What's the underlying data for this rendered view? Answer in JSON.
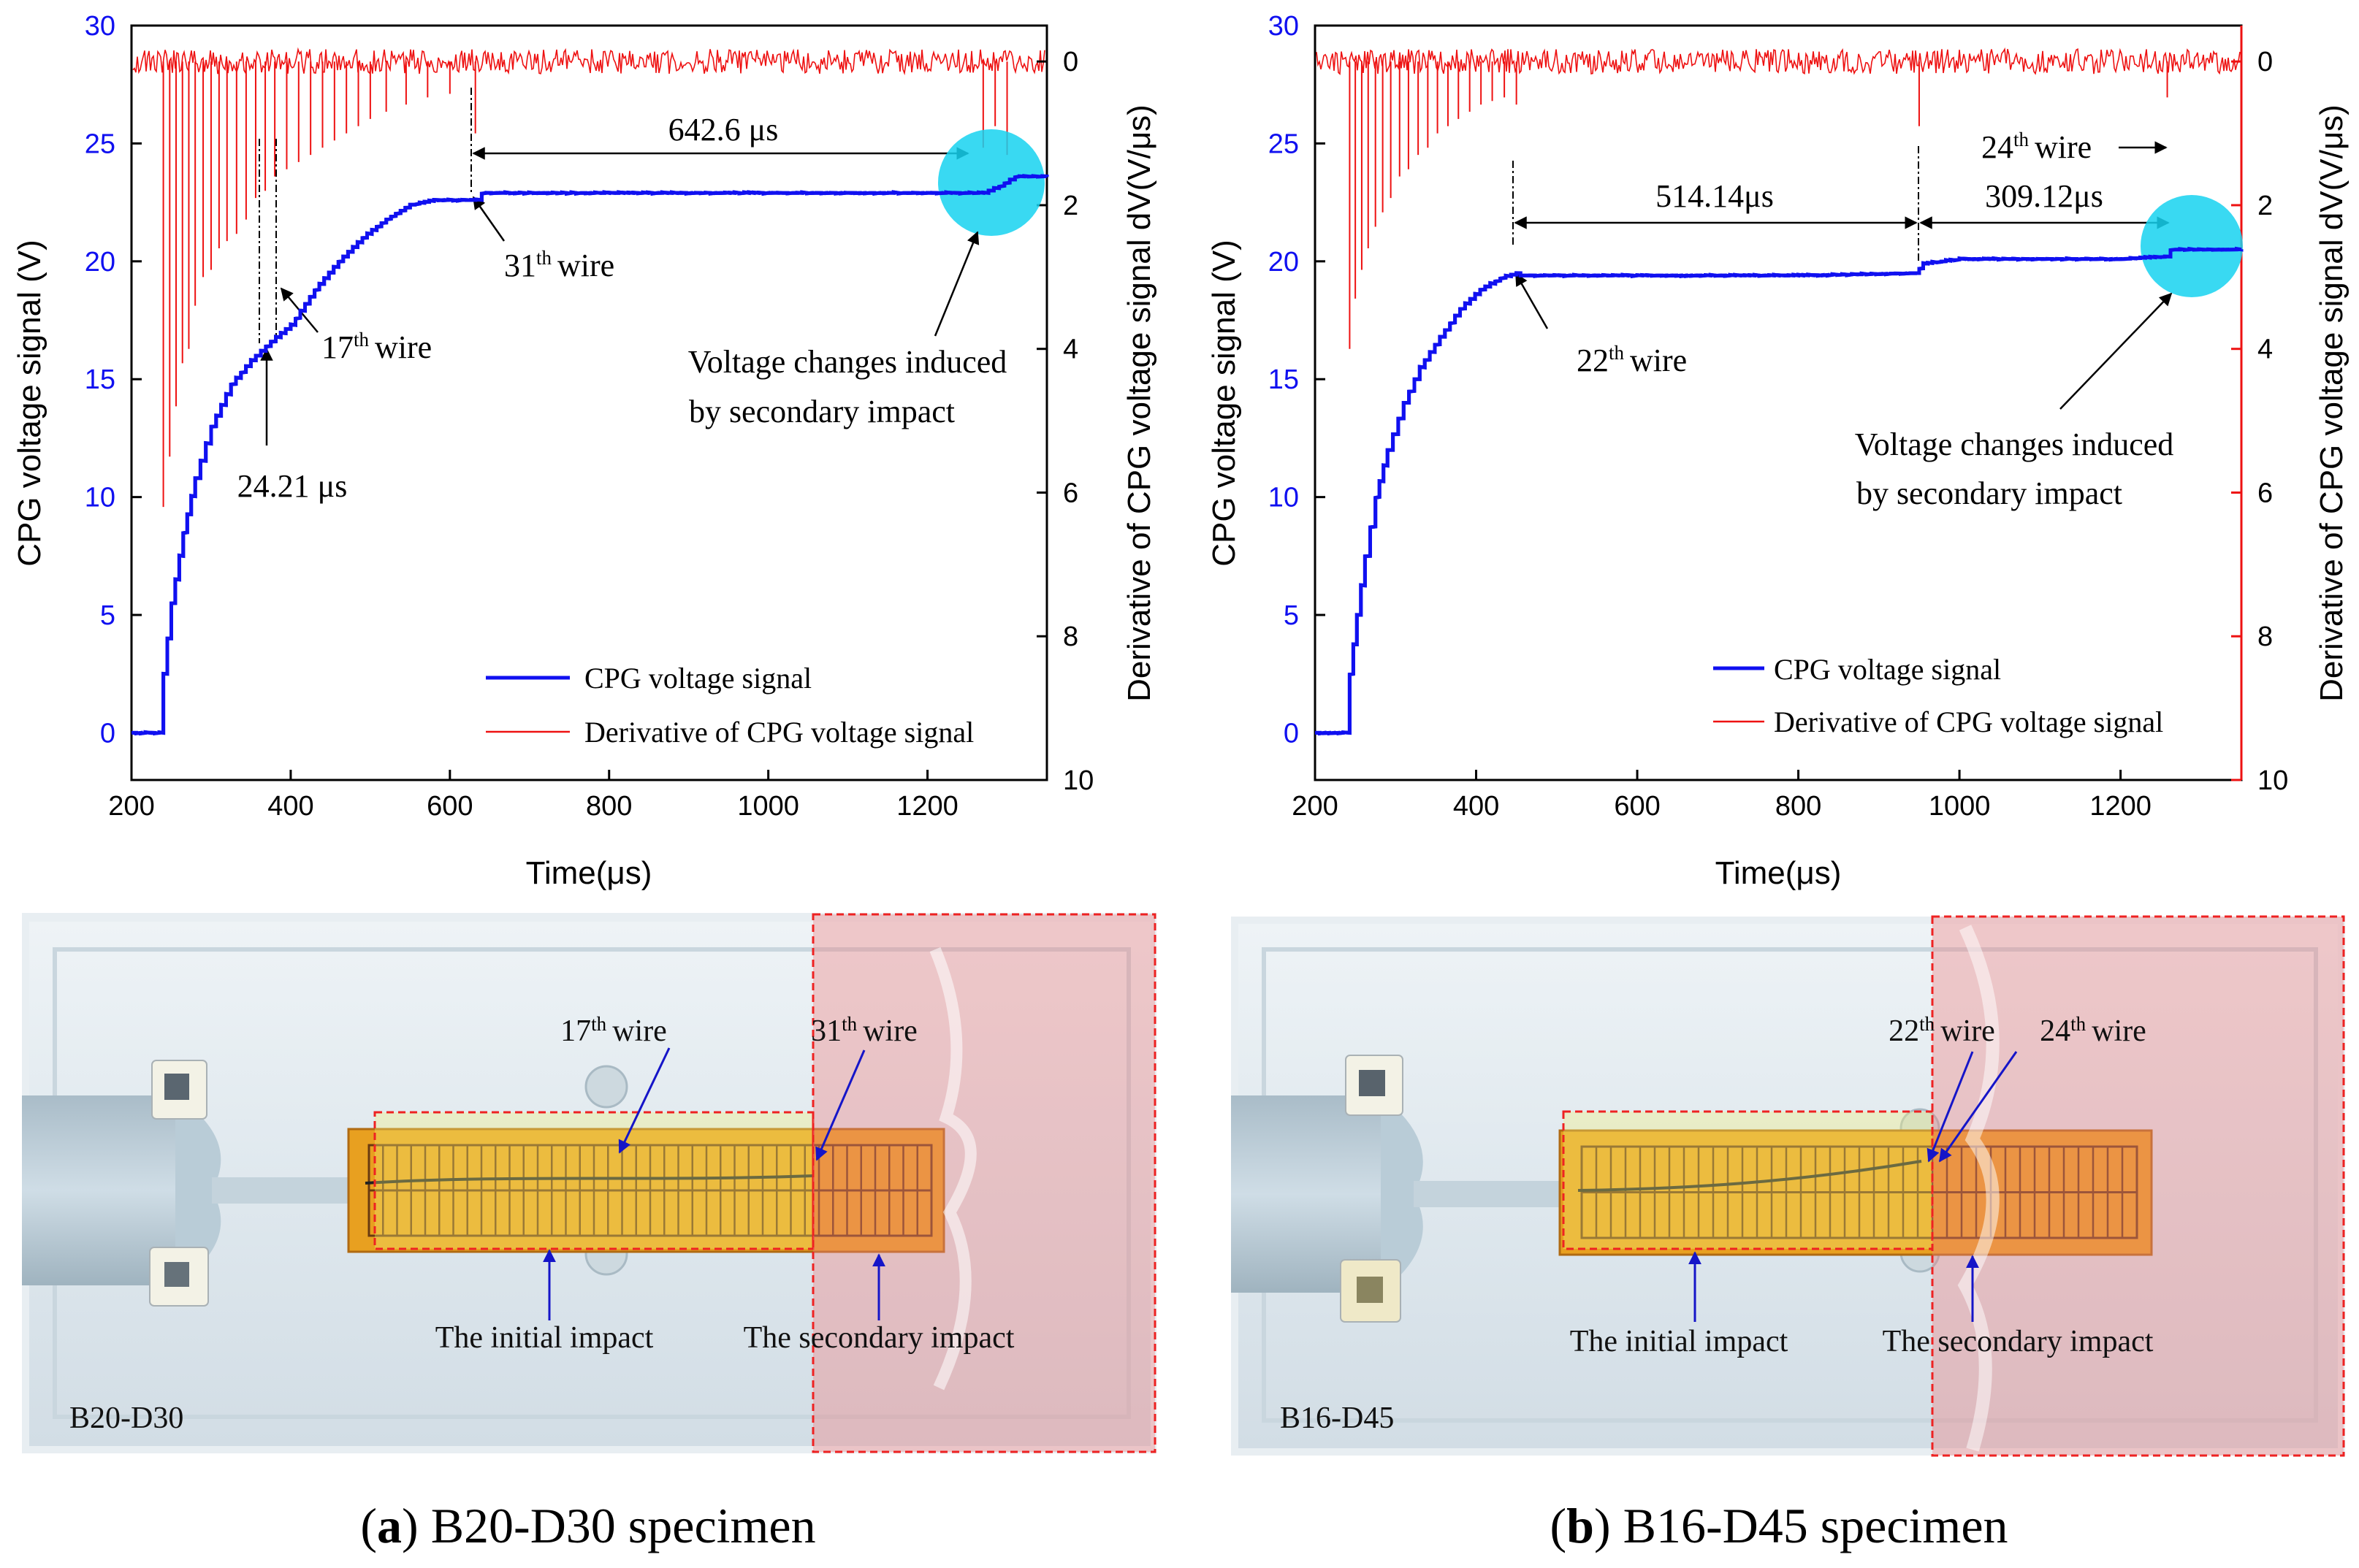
{
  "colors": {
    "voltage": "#1010f0",
    "derivative": "#ee1111",
    "circle": "#16d2f0",
    "photo_box": "#f08080",
    "tape": "#e8a020"
  },
  "chart_data": [
    {
      "type": "line",
      "panel": "a",
      "xlabel": "Time(μs)",
      "ylabel": "CPG voltage signal (V)",
      "y2label": "Derivative of CPG voltage signal dV(V/μs)",
      "xlim": [
        200,
        1350
      ],
      "ylim": [
        -2,
        30
      ],
      "y2lim": [
        -0.5,
        10
      ],
      "y2_inverted": true,
      "x_ticks": [
        "200",
        "400",
        "600",
        "800",
        "1000",
        "1200"
      ],
      "y_ticks": [
        "0",
        "5",
        "10",
        "15",
        "20",
        "25",
        "30"
      ],
      "y2_ticks": [
        "0",
        "2",
        "4",
        "6",
        "8",
        "10"
      ],
      "legend": [
        "CPG voltage signal",
        "Derivative of CPG voltage signal"
      ],
      "legend_position": "bottom-right",
      "series": [
        {
          "name": "CPG voltage signal",
          "x": [
            200,
            235,
            240,
            250,
            265,
            280,
            300,
            325,
            350,
            375,
            400,
            430,
            460,
            490,
            520,
            550,
            580,
            610,
            632,
            640,
            800,
            1000,
            1200,
            1270,
            1290,
            1310,
            1350
          ],
          "y": [
            0,
            0,
            2.5,
            5.5,
            8.5,
            10.8,
            13,
            14.8,
            15.8,
            16.6,
            17.3,
            18.8,
            20,
            21,
            21.8,
            22.4,
            22.6,
            22.6,
            22.6,
            22.9,
            22.9,
            22.9,
            22.9,
            22.9,
            23.2,
            23.6,
            23.6
          ]
        },
        {
          "name": "Derivative of CPG voltage signal",
          "spikes_x": [
            240,
            248,
            256,
            264,
            272,
            280,
            290,
            300,
            310,
            320,
            332,
            344,
            356,
            368,
            380,
            395,
            410,
            425,
            440,
            455,
            470,
            485,
            500,
            520,
            545,
            572,
            600,
            632,
            1270,
            1285,
            1300
          ],
          "spikes_y": [
            6.2,
            5.5,
            4.8,
            4.2,
            4.0,
            3.4,
            3.0,
            2.9,
            2.6,
            2.5,
            2.4,
            2.2,
            1.9,
            1.8,
            1.6,
            1.5,
            1.4,
            1.3,
            1.2,
            1.1,
            1.0,
            0.9,
            0.8,
            0.7,
            0.6,
            0.5,
            0.45,
            1.0,
            1.2,
            0.9,
            1.3
          ]
        }
      ],
      "annotations": {
        "interval_label": "642.6 μs",
        "interval_x": [
          640,
          1290
        ],
        "interval_y": 25.2,
        "wire_17": {
          "num": "17",
          "sup": "th",
          "text": "wire"
        },
        "wire_31": {
          "num": "31",
          "sup": "th",
          "text": "wire"
        },
        "time_label": "24.21 μs",
        "secondary_1": "Voltage changes induced",
        "secondary_2": "by secondary impact"
      },
      "photo": {
        "specimen_label": "B20-D30",
        "wire_17": {
          "num": "17",
          "sup": "th",
          "text": "wire"
        },
        "wire_31": {
          "num": "31",
          "sup": "th",
          "text": "wire"
        },
        "initial_label": "The initial impact",
        "secondary_label": "The secondary impact"
      },
      "caption": {
        "letter": "a",
        "text": "B20-D30 specimen"
      }
    },
    {
      "type": "line",
      "panel": "b",
      "xlabel": "Time(μs)",
      "ylabel": "CPG voltage signal (V)",
      "y2label": "Derivative of CPG voltage signal dV(V/μs)",
      "xlim": [
        200,
        1350
      ],
      "ylim": [
        -2,
        30
      ],
      "y2lim": [
        -0.5,
        10
      ],
      "y2_inverted": true,
      "x_ticks": [
        "200",
        "400",
        "600",
        "800",
        "1000",
        "1200"
      ],
      "y_ticks": [
        "0",
        "5",
        "10",
        "15",
        "20",
        "25",
        "30"
      ],
      "y2_ticks": [
        "0",
        "2",
        "4",
        "6",
        "8",
        "10"
      ],
      "legend": [
        "CPG voltage signal",
        "Derivative of CPG voltage signal"
      ],
      "legend_position": "bottom-right",
      "series": [
        {
          "name": "CPG voltage signal",
          "x": [
            200,
            235,
            243,
            252,
            262,
            275,
            290,
            310,
            330,
            355,
            380,
            405,
            430,
            450,
            455,
            600,
            800,
            945,
            955,
            1000,
            1200,
            1255,
            1262,
            1350
          ],
          "y": [
            0,
            0,
            2.5,
            5,
            7.5,
            10,
            12,
            14,
            15.5,
            16.8,
            18,
            18.8,
            19.3,
            19.5,
            19.4,
            19.4,
            19.4,
            19.5,
            19.9,
            20.1,
            20.1,
            20.2,
            20.5,
            20.5
          ]
        },
        {
          "name": "Derivative of CPG voltage signal",
          "spikes_x": [
            243,
            250,
            258,
            266,
            275,
            284,
            294,
            305,
            316,
            328,
            340,
            352,
            365,
            378,
            392,
            406,
            420,
            435,
            450,
            950,
            1258
          ],
          "spikes_y": [
            4.0,
            3.3,
            2.9,
            2.6,
            2.3,
            2.1,
            1.9,
            1.6,
            1.5,
            1.3,
            1.2,
            1.0,
            0.9,
            0.8,
            0.7,
            0.6,
            0.55,
            0.5,
            0.6,
            0.9,
            0.5
          ]
        }
      ],
      "annotations": {
        "interval1_label": "514.14μs",
        "interval1_x": [
          452,
          950
        ],
        "interval2_label": "309.12μs",
        "interval2_x": [
          950,
          1258
        ],
        "interval_y": 21.5,
        "wire_22": {
          "num": "22",
          "sup": "th",
          "text": "wire"
        },
        "wire_24": {
          "num": "24",
          "sup": "th",
          "text": "wire"
        },
        "secondary_1": "Voltage changes induced",
        "secondary_2": "by secondary impact"
      },
      "photo": {
        "specimen_label": "B16-D45",
        "wire_22": {
          "num": "22",
          "sup": "th",
          "text": "wire"
        },
        "wire_24": {
          "num": "24",
          "sup": "th",
          "text": "wire"
        },
        "initial_label": "The initial impact",
        "secondary_label": "The secondary impact"
      },
      "caption": {
        "letter": "b",
        "text": "B16-D45 specimen"
      }
    }
  ]
}
